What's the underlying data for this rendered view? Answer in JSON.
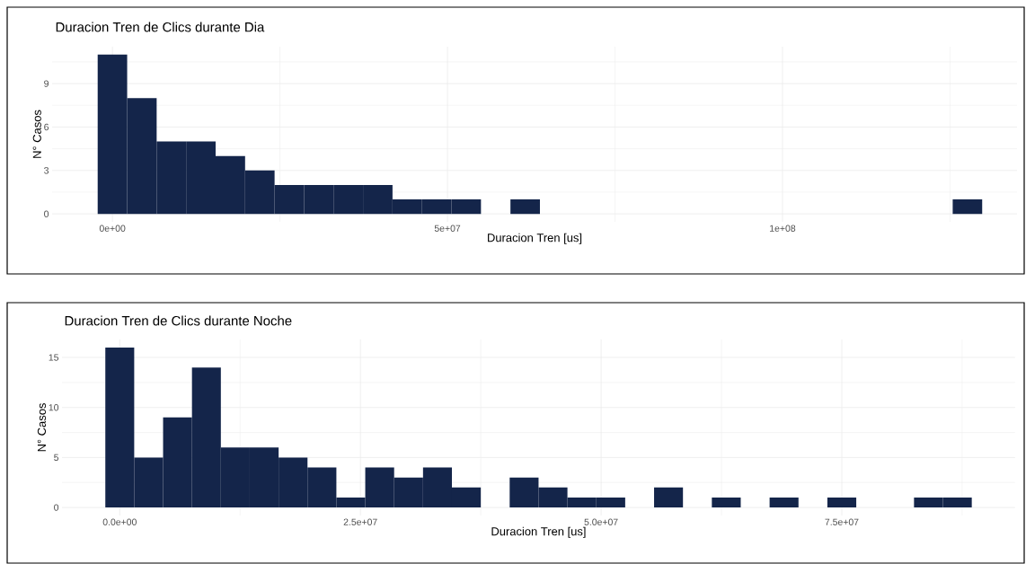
{
  "chart_data": [
    {
      "type": "histogram",
      "title": "Duracion Tren de Clics durante Dia",
      "xlabel": "Duracion Tren [us]",
      "ylabel": "N° Casos",
      "color": "#14254a",
      "grid": true,
      "bins": [
        -2200000,
        2200000,
        6600000,
        11000000,
        15400000,
        19800000,
        24200000,
        28600000,
        33000000,
        37400000,
        41800000,
        46200000,
        50600000,
        55000000,
        59400000,
        63800000,
        68200000,
        72600000,
        77000000,
        81400000,
        85800000,
        90200000,
        94600000,
        99000000,
        103400000,
        107800000,
        112200000,
        116600000,
        121000000,
        125400000,
        129800000
      ],
      "values": [
        11,
        8,
        5,
        5,
        4,
        3,
        2,
        2,
        2,
        2,
        1,
        1,
        1,
        0,
        1,
        0,
        0,
        0,
        0,
        0,
        0,
        0,
        0,
        0,
        0,
        0,
        0,
        0,
        0,
        1
      ],
      "xlim": [
        -9000000,
        135000000
      ],
      "ylim": [
        -0.55,
        11.55
      ],
      "xticks": [
        {
          "value": 0,
          "label": "0e+00"
        },
        {
          "value": 50000000,
          "label": "5e+07"
        },
        {
          "value": 100000000,
          "label": "1e+08"
        }
      ],
      "yticks": [
        0,
        3,
        6,
        9
      ]
    },
    {
      "type": "histogram",
      "title": "Duracion Tren de Clics durante Noche",
      "xlabel": "Duracion Tren [us]",
      "ylabel": "N° Casos",
      "color": "#14254a",
      "grid": true,
      "bins": [
        -1500000,
        1500000,
        4500000,
        7500000,
        10500000,
        13500000,
        16500000,
        19500000,
        22500000,
        25500000,
        28500000,
        31500000,
        34500000,
        37500000,
        40500000,
        43500000,
        46500000,
        49500000,
        52500000,
        55500000,
        58500000,
        61500000,
        64500000,
        67500000,
        70500000,
        73500000,
        76500000,
        79500000,
        82500000,
        85500000,
        88500000
      ],
      "values": [
        16,
        5,
        9,
        14,
        6,
        6,
        5,
        4,
        1,
        4,
        3,
        4,
        2,
        0,
        3,
        2,
        1,
        1,
        0,
        2,
        0,
        1,
        0,
        1,
        0,
        1,
        0,
        0,
        1,
        1
      ],
      "xlim": [
        -6000000,
        93000000
      ],
      "ylim": [
        -0.8,
        16.8
      ],
      "xticks": [
        {
          "value": 0,
          "label": "0.0e+00"
        },
        {
          "value": 25000000,
          "label": "2.5e+07"
        },
        {
          "value": 50000000,
          "label": "5.0e+07"
        },
        {
          "value": 75000000,
          "label": "7.5e+07"
        }
      ],
      "yticks": [
        0,
        5,
        10,
        15
      ]
    }
  ]
}
